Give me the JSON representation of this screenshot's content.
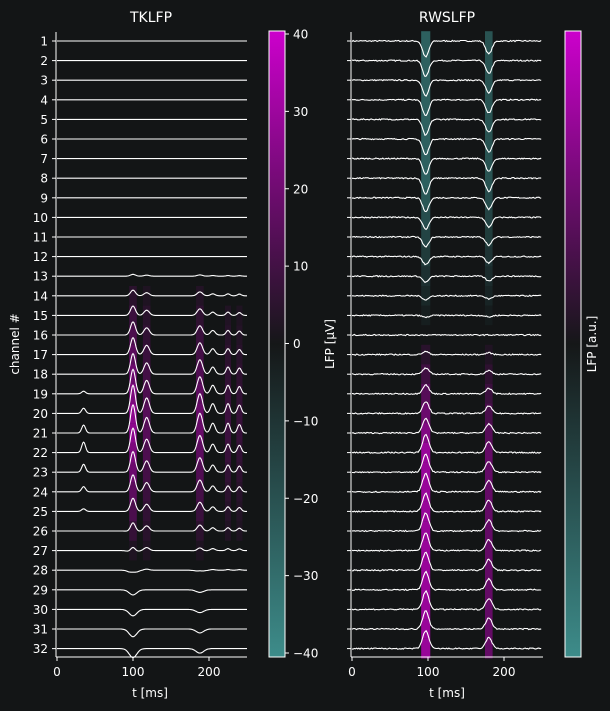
{
  "colors": {
    "background": "#131516",
    "axis": "#ffffff",
    "trace": "#ffffff",
    "colormap_low": "#3d8c8a",
    "colormap_mid": "#151718",
    "colormap_high": "#cc00cc"
  },
  "chart_data": [
    {
      "type": "line",
      "title": "TKLFP",
      "xlabel": "t [ms]",
      "ylabel": "channel #",
      "xlim": [
        0,
        250
      ],
      "x_ticks": [
        0,
        100,
        200
      ],
      "channels": [
        "1",
        "2",
        "3",
        "4",
        "5",
        "6",
        "7",
        "8",
        "9",
        "10",
        "11",
        "12",
        "13",
        "14",
        "15",
        "16",
        "17",
        "18",
        "19",
        "20",
        "21",
        "22",
        "23",
        "24",
        "25",
        "26",
        "27",
        "28",
        "29",
        "30",
        "31",
        "32"
      ],
      "event_times_ms": [
        35,
        100,
        118,
        188,
        205,
        225,
        240
      ],
      "note_colorbar": "background heatmap = LFP magnitude",
      "colorbar": {
        "label": "LFP [μV]",
        "range": [
          -40,
          40
        ],
        "ticks": [
          40,
          30,
          20,
          10,
          0,
          -10,
          -20,
          -30,
          -40
        ],
        "tick_labels": [
          "40",
          "30",
          "20",
          "10",
          "0",
          "−10",
          "−20",
          "−30",
          "−40"
        ]
      }
    },
    {
      "type": "line",
      "title": "RWSLFP",
      "xlabel": "t [ms]",
      "ylabel": "",
      "xlim": [
        0,
        250
      ],
      "x_ticks": [
        0,
        100,
        200
      ],
      "channels": [
        "1",
        "2",
        "3",
        "4",
        "5",
        "6",
        "7",
        "8",
        "9",
        "10",
        "11",
        "12",
        "13",
        "14",
        "15",
        "16",
        "17",
        "18",
        "19",
        "20",
        "21",
        "22",
        "23",
        "24",
        "25",
        "26",
        "27",
        "28",
        "29",
        "30",
        "31",
        "32"
      ],
      "event_times_ms": [
        97,
        180
      ],
      "colorbar": {
        "label": "LFP [a.u.]",
        "range": [
          -1,
          1
        ],
        "ticks": [],
        "tick_labels": []
      }
    }
  ]
}
